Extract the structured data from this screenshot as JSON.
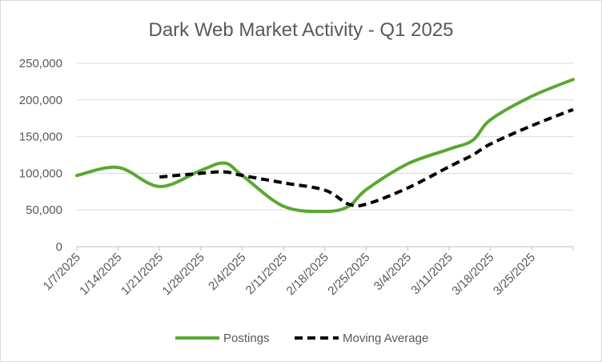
{
  "chart_data": {
    "type": "line",
    "title": "Dark Web Market Activity - Q1 2025",
    "xlabel": "",
    "ylabel": "",
    "ylim": [
      0,
      250000
    ],
    "yticks": [
      0,
      50000,
      100000,
      150000,
      200000,
      250000
    ],
    "ytick_labels": [
      "0",
      "50,000",
      "100,000",
      "150,000",
      "200,000",
      "250,000"
    ],
    "x_tick_labels": [
      "1/7/2025",
      "1/14/2025",
      "1/21/2025",
      "1/28/2025",
      "2/4/2025",
      "2/11/2025",
      "2/18/2025",
      "2/25/2025",
      "3/4/2025",
      "3/11/2025",
      "3/18/2025",
      "3/25/2025"
    ],
    "x": [
      "1/7/2025",
      "1/14/2025",
      "1/21/2025",
      "1/28/2025",
      "2/1/2025",
      "2/4/2025",
      "2/11/2025",
      "2/18/2025",
      "2/22/2025",
      "2/25/2025",
      "3/4/2025",
      "3/11/2025",
      "3/15/2025",
      "3/18/2025",
      "3/25/2025",
      "4/1/2025"
    ],
    "grid": true,
    "legend_position": "bottom",
    "series": [
      {
        "name": "Postings",
        "color": "#5aa832",
        "style": "solid",
        "values": [
          97000,
          108000,
          82000,
          104000,
          114000,
          97000,
          55000,
          48000,
          55000,
          78000,
          113000,
          133000,
          145000,
          173000,
          205000,
          228000
        ]
      },
      {
        "name": "Moving Average",
        "color": "#000000",
        "style": "dashed",
        "values": [
          null,
          null,
          95000,
          100000,
          102000,
          97000,
          87000,
          77000,
          58000,
          58000,
          80000,
          109000,
          125000,
          140000,
          165000,
          187000
        ]
      }
    ]
  }
}
